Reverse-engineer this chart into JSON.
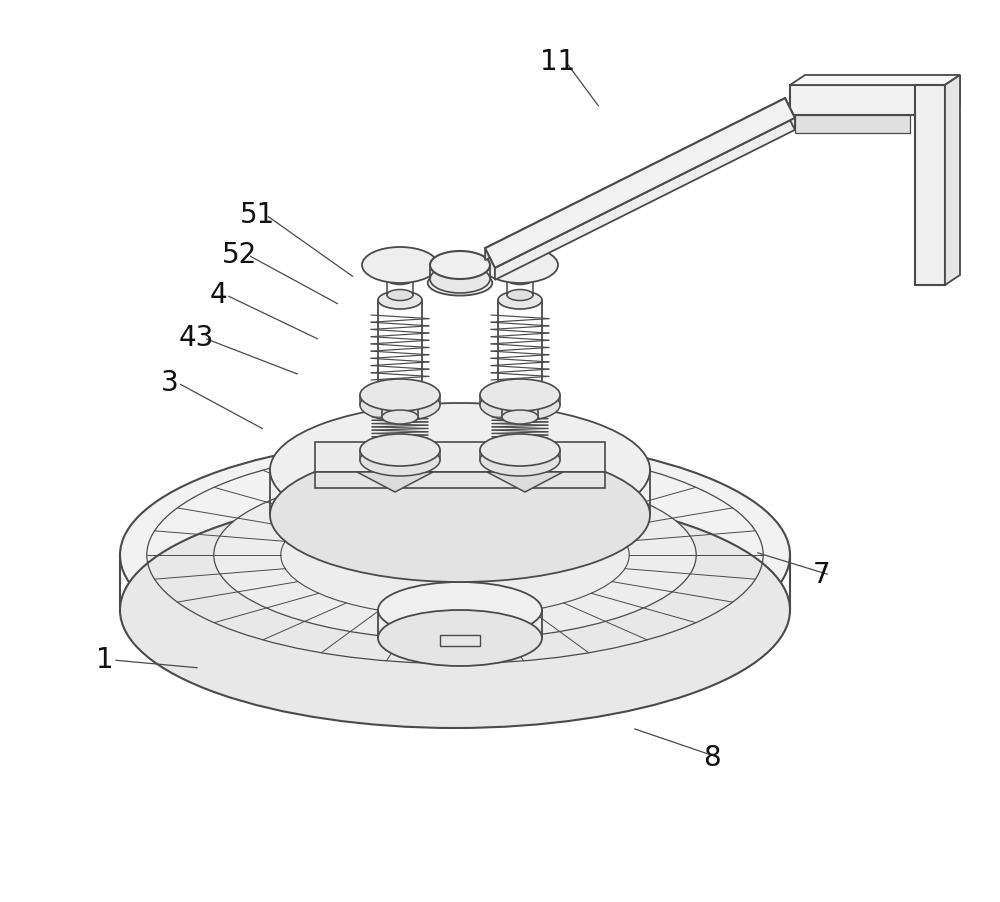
{
  "bg_color": "#ffffff",
  "line_color": "#4a4a4a",
  "figsize": [
    10.0,
    9.02
  ],
  "dpi": 100,
  "label_data": [
    [
      "11",
      558,
      62,
      600,
      108
    ],
    [
      "51",
      258,
      215,
      355,
      278
    ],
    [
      "52",
      240,
      255,
      340,
      305
    ],
    [
      "4",
      218,
      295,
      320,
      340
    ],
    [
      "43",
      196,
      338,
      300,
      375
    ],
    [
      "3",
      170,
      383,
      265,
      430
    ],
    [
      "1",
      105,
      660,
      200,
      668
    ],
    [
      "7",
      822,
      575,
      755,
      552
    ],
    [
      "8",
      712,
      758,
      632,
      728
    ]
  ]
}
